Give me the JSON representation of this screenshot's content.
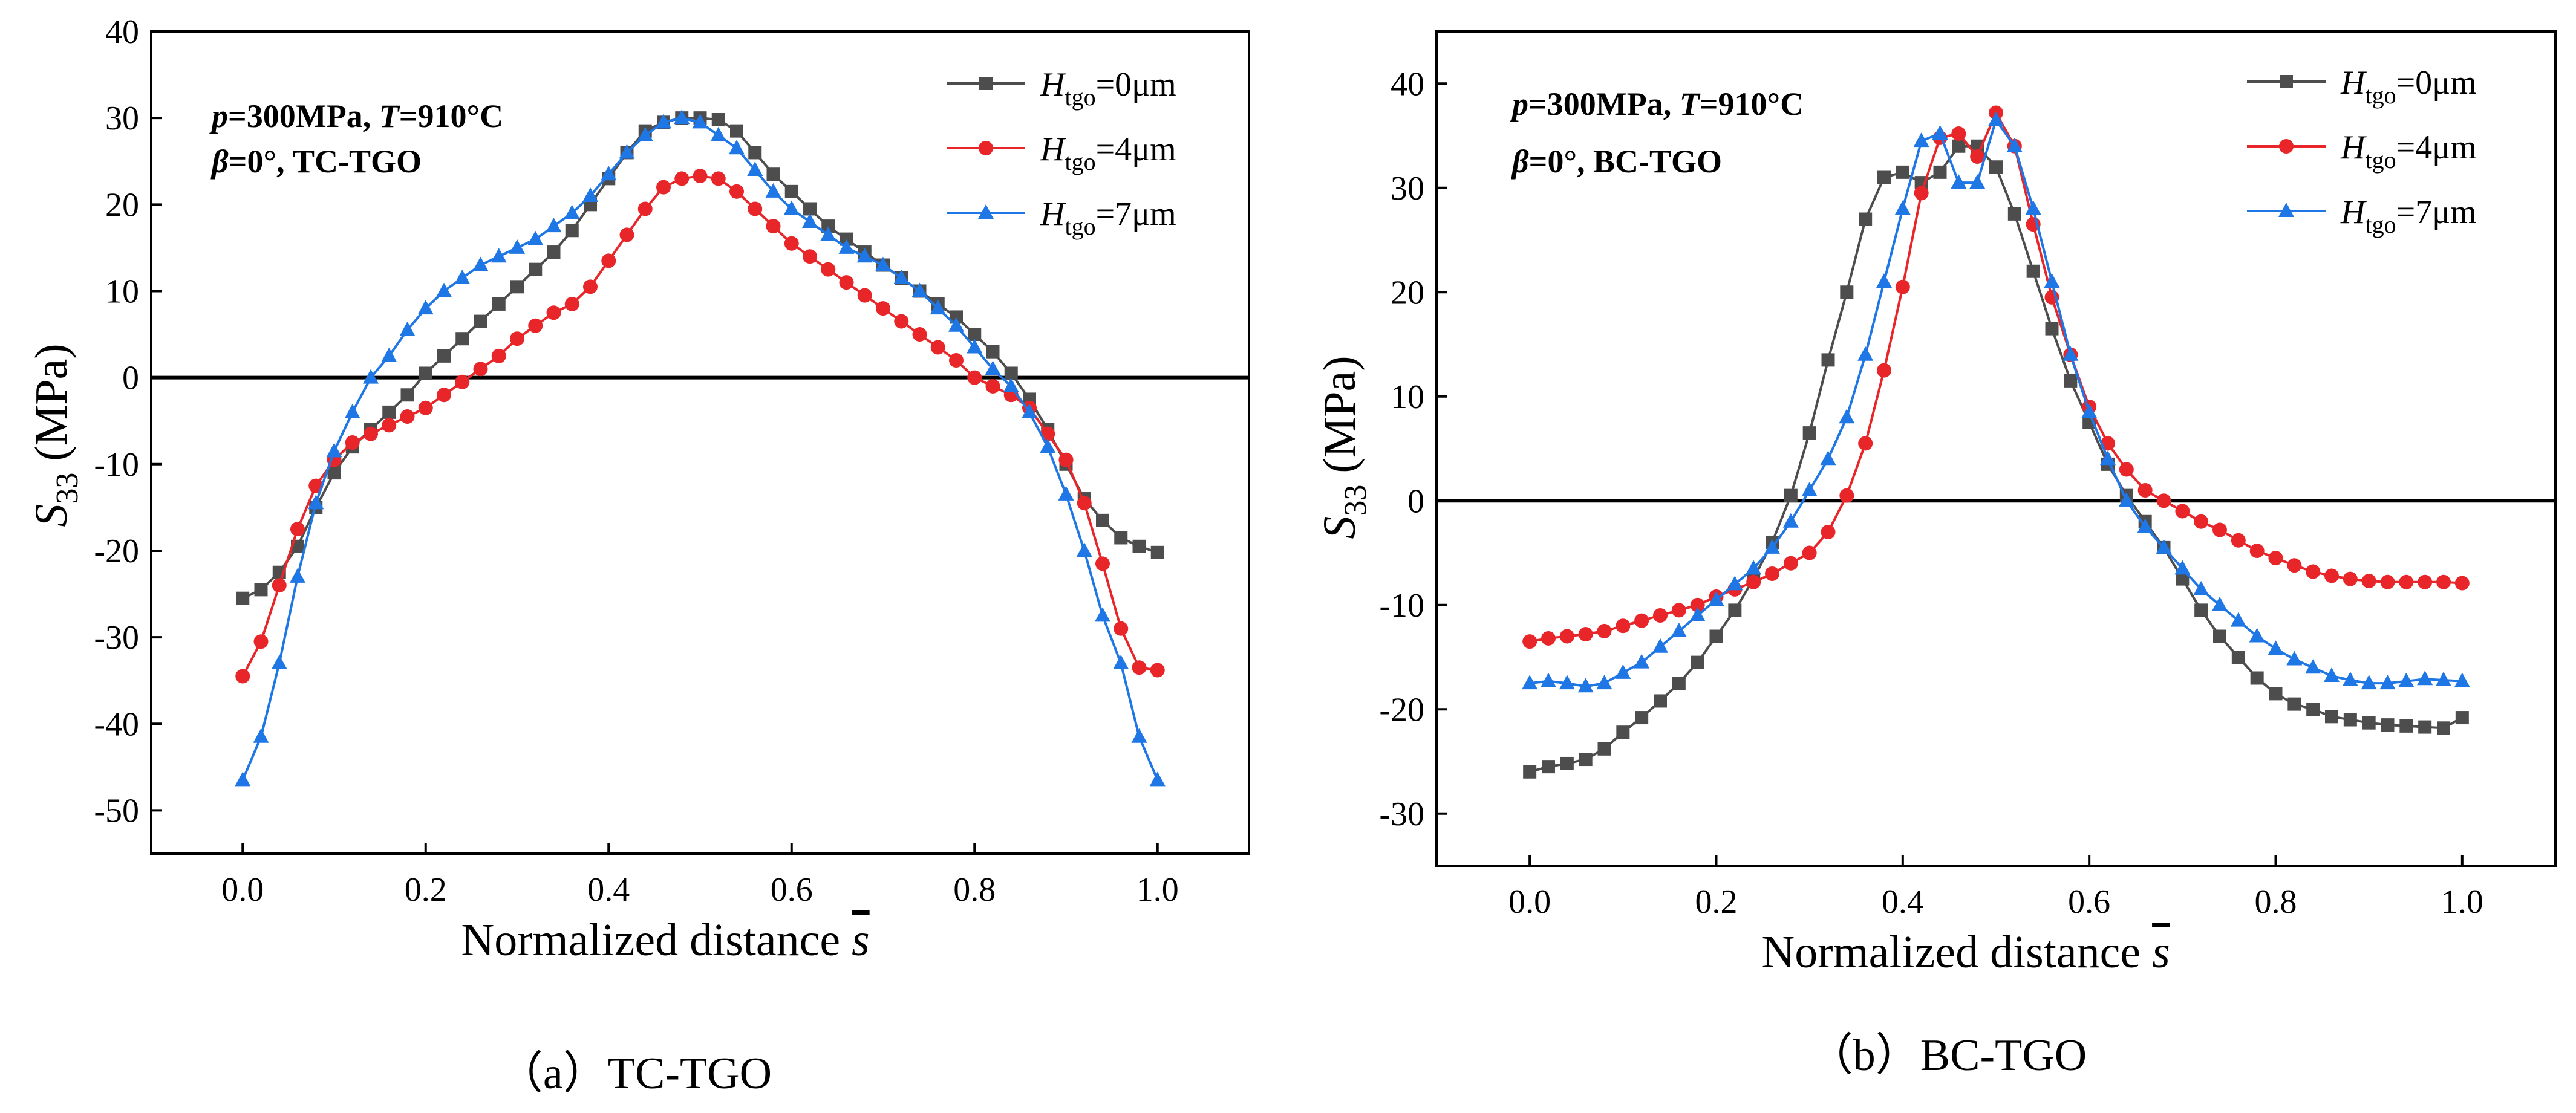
{
  "figure": {
    "captions": [
      "（a）TC-TGO",
      "（b）BC-TGO"
    ]
  },
  "chart_data": [
    {
      "type": "line",
      "panel": "a",
      "xlabel": "Normalized distance",
      "xsymbol": "s",
      "ylabel_symbol": "S",
      "ylabel_sub": "33",
      "ylabel_unit": "(MPa)",
      "xlim": [
        -0.1,
        1.1
      ],
      "ylim": [
        -55,
        40
      ],
      "xticks": [
        0,
        0.2,
        0.4,
        0.6,
        0.8,
        1.0
      ],
      "xtick_labels": [
        "0.0",
        "0.2",
        "0.4",
        "0.6",
        "0.8",
        "1.0"
      ],
      "yticks": [
        40,
        30,
        20,
        10,
        0,
        -10,
        -20,
        -30,
        -40,
        -50
      ],
      "ytick_labels": [
        "40",
        "30",
        "20",
        "10",
        "0",
        "-10",
        "-20",
        "-30",
        "-40",
        "-50"
      ],
      "zero_line": true,
      "annotation": {
        "line1": [
          "p",
          "=300MPa, ",
          "T",
          "=910°C"
        ],
        "line2": [
          "β",
          "=0°, TC-TGO"
        ]
      },
      "legend_position": "top-right",
      "series": [
        {
          "name": "Htgo=0μm",
          "symbol": "H",
          "sub": "tgo",
          "suffix": "=0μm",
          "color": "#4d4d4d",
          "marker": "square",
          "x": [
            0.0,
            0.02,
            0.04,
            0.06,
            0.08,
            0.1,
            0.12,
            0.14,
            0.16,
            0.18,
            0.2,
            0.22,
            0.24,
            0.26,
            0.28,
            0.3,
            0.32,
            0.34,
            0.36,
            0.38,
            0.4,
            0.42,
            0.44,
            0.46,
            0.48,
            0.5,
            0.52,
            0.54,
            0.56,
            0.58,
            0.6,
            0.62,
            0.64,
            0.66,
            0.68,
            0.7,
            0.72,
            0.74,
            0.76,
            0.78,
            0.8,
            0.82,
            0.84,
            0.86,
            0.88,
            0.9,
            0.92,
            0.94,
            0.96,
            0.98,
            1.0
          ],
          "y": [
            -25.5,
            -24.5,
            -22.5,
            -19.5,
            -15,
            -11,
            -8,
            -6,
            -4,
            -2,
            0.5,
            2.5,
            4.5,
            6.5,
            8.5,
            10.5,
            12.5,
            14.5,
            17,
            20,
            23,
            26,
            28.5,
            29.5,
            30,
            30,
            29.8,
            28.5,
            26,
            23.5,
            21.5,
            19.5,
            17.5,
            16,
            14.5,
            13,
            11.5,
            10,
            8.5,
            7,
            5,
            3,
            0.5,
            -2.5,
            -6,
            -10,
            -14,
            -16.5,
            -18.5,
            -19.5,
            -20.2
          ]
        },
        {
          "name": "Htgo=4μm",
          "symbol": "H",
          "sub": "tgo",
          "suffix": "=4μm",
          "color": "#e8262a",
          "marker": "circle",
          "x": [
            0.0,
            0.02,
            0.04,
            0.06,
            0.08,
            0.1,
            0.12,
            0.14,
            0.16,
            0.18,
            0.2,
            0.22,
            0.24,
            0.26,
            0.28,
            0.3,
            0.32,
            0.34,
            0.36,
            0.38,
            0.4,
            0.42,
            0.44,
            0.46,
            0.48,
            0.5,
            0.52,
            0.54,
            0.56,
            0.58,
            0.6,
            0.62,
            0.64,
            0.66,
            0.68,
            0.7,
            0.72,
            0.74,
            0.76,
            0.78,
            0.8,
            0.82,
            0.84,
            0.86,
            0.88,
            0.9,
            0.92,
            0.94,
            0.96,
            0.98,
            1.0
          ],
          "y": [
            -34.5,
            -30.5,
            -24,
            -17.5,
            -12.5,
            -9.5,
            -7.5,
            -6.5,
            -5.5,
            -4.5,
            -3.5,
            -2,
            -0.5,
            1,
            2.5,
            4.5,
            6,
            7.5,
            8.5,
            10.5,
            13.5,
            16.5,
            19.5,
            22,
            23,
            23.3,
            23,
            21.5,
            19.5,
            17.5,
            15.5,
            14,
            12.5,
            11,
            9.5,
            8,
            6.5,
            5,
            3.5,
            2,
            0,
            -1,
            -2,
            -3.5,
            -6.5,
            -9.5,
            -14.5,
            -21.5,
            -29,
            -33.5,
            -33.8
          ]
        },
        {
          "name": "Htgo=7μm",
          "symbol": "H",
          "sub": "tgo",
          "suffix": "=7μm",
          "color": "#1f77e6",
          "marker": "triangle",
          "x": [
            0.0,
            0.02,
            0.04,
            0.06,
            0.08,
            0.1,
            0.12,
            0.14,
            0.16,
            0.18,
            0.2,
            0.22,
            0.24,
            0.26,
            0.28,
            0.3,
            0.32,
            0.34,
            0.36,
            0.38,
            0.4,
            0.42,
            0.44,
            0.46,
            0.48,
            0.5,
            0.52,
            0.54,
            0.56,
            0.58,
            0.6,
            0.62,
            0.64,
            0.66,
            0.68,
            0.7,
            0.72,
            0.74,
            0.76,
            0.78,
            0.8,
            0.82,
            0.84,
            0.86,
            0.88,
            0.9,
            0.92,
            0.94,
            0.96,
            0.98,
            1.0
          ],
          "y": [
            -46.5,
            -41.5,
            -33,
            -23,
            -14.5,
            -8.5,
            -4,
            0,
            2.5,
            5.5,
            8,
            10,
            11.5,
            13,
            14,
            15,
            16,
            17.5,
            19,
            21,
            23.5,
            26,
            28,
            29.5,
            30,
            29.5,
            28,
            26.5,
            24,
            21.5,
            19.5,
            18,
            16.5,
            15,
            14,
            13,
            11.5,
            10,
            8,
            6,
            3.5,
            1,
            -1,
            -4,
            -8,
            -13.5,
            -20,
            -27.5,
            -33,
            -41.5,
            -46.5
          ]
        }
      ]
    },
    {
      "type": "line",
      "panel": "b",
      "xlabel": "Normalized distance",
      "xsymbol": "s",
      "ylabel_symbol": "S",
      "ylabel_sub": "33",
      "ylabel_unit": "(MPa)",
      "xlim": [
        -0.1,
        1.1
      ],
      "ylim": [
        -35,
        45
      ],
      "xticks": [
        0,
        0.2,
        0.4,
        0.6,
        0.8,
        1.0
      ],
      "xtick_labels": [
        "0.0",
        "0.2",
        "0.4",
        "0.6",
        "0.8",
        "1.0"
      ],
      "yticks": [
        40,
        30,
        20,
        10,
        0,
        -10,
        -20,
        -30
      ],
      "ytick_labels": [
        "40",
        "30",
        "20",
        "10",
        "0",
        "-10",
        "-20",
        "-30"
      ],
      "zero_line": true,
      "annotation": {
        "line1": [
          "p",
          "=300MPa, ",
          "T",
          "=910°C"
        ],
        "line2": [
          "β",
          "=0°, BC-TGO"
        ]
      },
      "legend_position": "top-right",
      "series": [
        {
          "name": "Htgo=0μm",
          "symbol": "H",
          "sub": "tgo",
          "suffix": "=0μm",
          "color": "#4d4d4d",
          "marker": "square",
          "x": [
            0.0,
            0.02,
            0.04,
            0.06,
            0.08,
            0.1,
            0.12,
            0.14,
            0.16,
            0.18,
            0.2,
            0.22,
            0.24,
            0.26,
            0.28,
            0.3,
            0.32,
            0.34,
            0.36,
            0.38,
            0.4,
            0.42,
            0.44,
            0.46,
            0.48,
            0.5,
            0.52,
            0.54,
            0.56,
            0.58,
            0.6,
            0.62,
            0.64,
            0.66,
            0.68,
            0.7,
            0.72,
            0.74,
            0.76,
            0.78,
            0.8,
            0.82,
            0.84,
            0.86,
            0.88,
            0.9,
            0.92,
            0.94,
            0.96,
            0.98,
            1.0
          ],
          "y": [
            -26,
            -25.5,
            -25.2,
            -24.8,
            -23.8,
            -22.2,
            -20.8,
            -19.2,
            -17.5,
            -15.5,
            -13,
            -10.5,
            -7.5,
            -4,
            0.5,
            6.5,
            13.5,
            20,
            27,
            31,
            31.5,
            30.5,
            31.5,
            34,
            34,
            32,
            27.5,
            22,
            16.5,
            11.5,
            7.5,
            3.5,
            0.5,
            -2,
            -4.5,
            -7.5,
            -10.5,
            -13,
            -15,
            -17,
            -18.5,
            -19.5,
            -20,
            -20.7,
            -21,
            -21.3,
            -21.5,
            -21.6,
            -21.7,
            -21.8,
            -20.8
          ]
        },
        {
          "name": "Htgo=4μm",
          "symbol": "H",
          "sub": "tgo",
          "suffix": "=4μm",
          "color": "#e8262a",
          "marker": "circle",
          "x": [
            0.0,
            0.02,
            0.04,
            0.06,
            0.08,
            0.1,
            0.12,
            0.14,
            0.16,
            0.18,
            0.2,
            0.22,
            0.24,
            0.26,
            0.28,
            0.3,
            0.32,
            0.34,
            0.36,
            0.38,
            0.4,
            0.42,
            0.44,
            0.46,
            0.48,
            0.5,
            0.52,
            0.54,
            0.56,
            0.58,
            0.6,
            0.62,
            0.64,
            0.66,
            0.68,
            0.7,
            0.72,
            0.74,
            0.76,
            0.78,
            0.8,
            0.82,
            0.84,
            0.86,
            0.88,
            0.9,
            0.92,
            0.94,
            0.96,
            0.98,
            1.0
          ],
          "y": [
            -13.5,
            -13.2,
            -13,
            -12.8,
            -12.5,
            -12,
            -11.5,
            -11,
            -10.5,
            -10,
            -9.2,
            -8.5,
            -7.8,
            -7,
            -6,
            -5,
            -3,
            0.5,
            5.5,
            12.5,
            20.5,
            29.5,
            34.8,
            35.2,
            33,
            37.2,
            34,
            26.5,
            19.5,
            14,
            9,
            5.5,
            3,
            1,
            0,
            -1,
            -2,
            -2.8,
            -3.8,
            -4.8,
            -5.5,
            -6.2,
            -6.8,
            -7.2,
            -7.5,
            -7.7,
            -7.8,
            -7.8,
            -7.8,
            -7.8,
            -7.9
          ]
        },
        {
          "name": "Htgo=7μm",
          "symbol": "H",
          "sub": "tgo",
          "suffix": "=7μm",
          "color": "#1f77e6",
          "marker": "triangle",
          "x": [
            0.0,
            0.02,
            0.04,
            0.06,
            0.08,
            0.1,
            0.12,
            0.14,
            0.16,
            0.18,
            0.2,
            0.22,
            0.24,
            0.26,
            0.28,
            0.3,
            0.32,
            0.34,
            0.36,
            0.38,
            0.4,
            0.42,
            0.44,
            0.46,
            0.48,
            0.5,
            0.52,
            0.54,
            0.56,
            0.58,
            0.6,
            0.62,
            0.64,
            0.66,
            0.68,
            0.7,
            0.72,
            0.74,
            0.76,
            0.78,
            0.8,
            0.82,
            0.84,
            0.86,
            0.88,
            0.9,
            0.92,
            0.94,
            0.96,
            0.98,
            1.0
          ],
          "y": [
            -17.5,
            -17.3,
            -17.5,
            -17.8,
            -17.5,
            -16.5,
            -15.5,
            -14,
            -12.5,
            -11,
            -9.5,
            -8,
            -6.5,
            -4.5,
            -2,
            1,
            4,
            8,
            14,
            21,
            28,
            34.5,
            35.2,
            30.5,
            30.5,
            36.5,
            34,
            28,
            21,
            14,
            8.5,
            4,
            0,
            -2.5,
            -4.5,
            -6.5,
            -8.5,
            -10,
            -11.5,
            -13,
            -14.2,
            -15.2,
            -16,
            -16.8,
            -17.2,
            -17.5,
            -17.5,
            -17.3,
            -17.1,
            -17.2,
            -17.3
          ]
        }
      ]
    }
  ]
}
